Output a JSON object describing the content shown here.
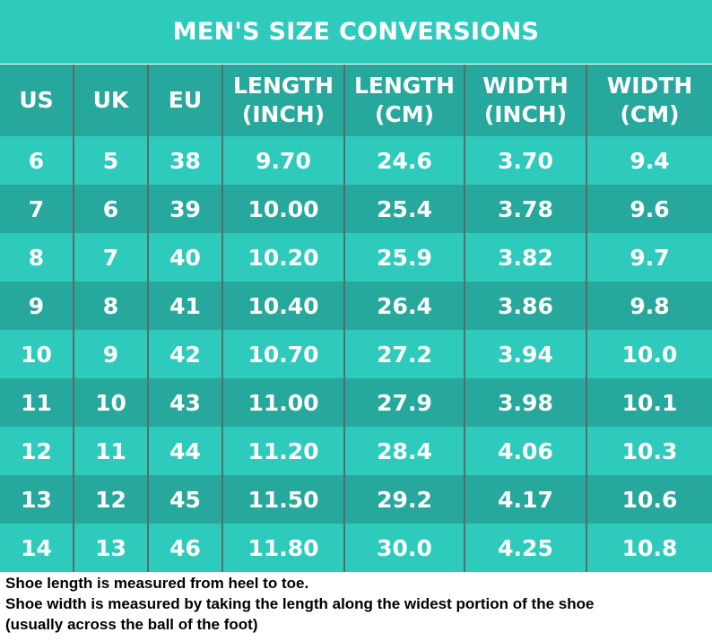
{
  "title": "MEN'S SIZE CONVERSIONS",
  "headers": [
    [
      "US"
    ],
    [
      "UK"
    ],
    [
      "EU"
    ],
    [
      "LENGTH",
      "(INCH)"
    ],
    [
      "LENGTH",
      "(CM)"
    ],
    [
      "WIDTH",
      "(INCH)"
    ],
    [
      "WIDTH",
      "(CM)"
    ]
  ],
  "rows": [
    [
      "6",
      "5",
      "38",
      "9.70",
      "24.6",
      "3.70",
      "9.4"
    ],
    [
      "7",
      "6",
      "39",
      "10.00",
      "25.4",
      "3.78",
      "9.6"
    ],
    [
      "8",
      "7",
      "40",
      "10.20",
      "25.9",
      "3.82",
      "9.7"
    ],
    [
      "9",
      "8",
      "41",
      "10.40",
      "26.4",
      "3.86",
      "9.8"
    ],
    [
      "10",
      "9",
      "42",
      "10.70",
      "27.2",
      "3.94",
      "10.0"
    ],
    [
      "11",
      "10",
      "43",
      "11.00",
      "27.9",
      "3.98",
      "10.1"
    ],
    [
      "12",
      "11",
      "44",
      "11.20",
      "28.4",
      "4.06",
      "10.3"
    ],
    [
      "13",
      "12",
      "45",
      "11.50",
      "29.2",
      "4.17",
      "10.6"
    ],
    [
      "14",
      "13",
      "46",
      "11.80",
      "30.0",
      "4.25",
      "10.8"
    ]
  ],
  "notes": [
    "Shoe length is measured from heel to toe.",
    "Shoe width is measured by taking the length along the widest portion of the shoe",
    "(usually across the ball of the foot)"
  ],
  "colors": {
    "light_teal": "#2ecbbd",
    "dark_teal": "#27a89c",
    "divider": "#5b6b6b",
    "text": "#ffffff"
  }
}
